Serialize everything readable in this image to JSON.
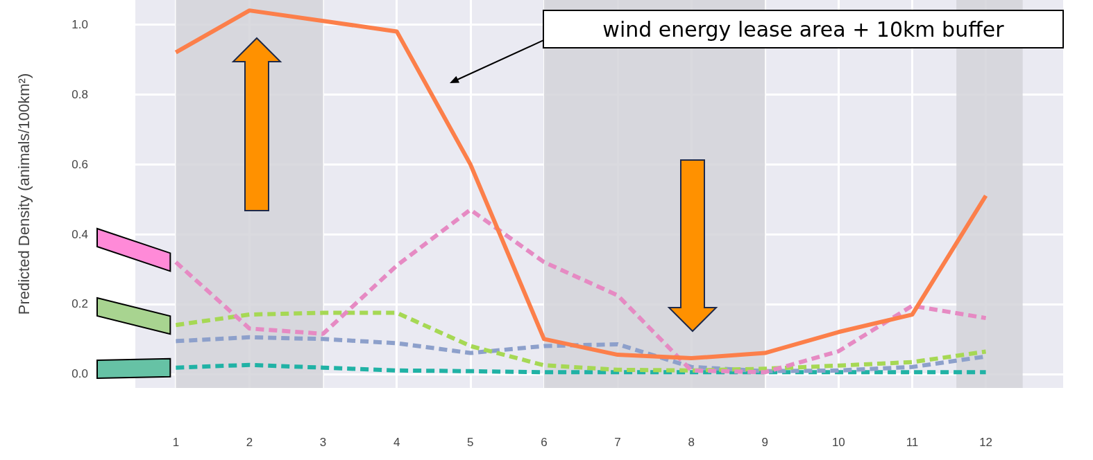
{
  "chart_data": {
    "type": "line",
    "ylabel": "Predicted Density (animals/100km²)",
    "x": [
      1,
      2,
      3,
      4,
      5,
      6,
      7,
      8,
      9,
      10,
      11,
      12
    ],
    "series": [
      {
        "color": "#fc7f4a",
        "line_style": "solid",
        "values": [
          0.92,
          1.04,
          1.01,
          0.98,
          0.6,
          0.1,
          0.055,
          0.045,
          0.06,
          0.12,
          0.17,
          0.51
        ]
      },
      {
        "color": "#e68ac3",
        "values": [
          0.32,
          0.13,
          0.115,
          0.31,
          0.47,
          0.32,
          0.225,
          0.01,
          0.005,
          0.065,
          0.195,
          0.16
        ]
      },
      {
        "color": "#a6d854",
        "values": [
          0.14,
          0.17,
          0.175,
          0.175,
          0.08,
          0.025,
          0.012,
          0.01,
          0.015,
          0.024,
          0.034,
          0.064
        ]
      },
      {
        "color": "#8da0cb",
        "values": [
          0.094,
          0.105,
          0.1,
          0.088,
          0.06,
          0.08,
          0.085,
          0.02,
          0.008,
          0.01,
          0.02,
          0.05
        ]
      },
      {
        "color": "#20b2a5",
        "values": [
          0.018,
          0.026,
          0.018,
          0.01,
          0.008,
          0.005,
          0.005,
          0.005,
          0.005,
          0.005,
          0.005,
          0.005
        ]
      }
    ],
    "line_style": "dashed",
    "marker": "none",
    "grid": true,
    "xlim": [
      0.45,
      13.05
    ],
    "xticks": [
      1,
      2,
      3,
      4,
      5,
      6,
      7,
      8,
      9,
      10,
      11,
      12
    ],
    "ylim": [
      -0.04,
      1.07
    ],
    "yticks": [
      {
        "value": 0,
        "label": "0.0"
      },
      {
        "value": 0.2,
        "label": "0.2"
      },
      {
        "value": 0.4,
        "label": "0.4"
      },
      {
        "value": 0.6,
        "label": "0.6"
      },
      {
        "value": 0.8,
        "label": "0.8"
      },
      {
        "value": 1,
        "label": "1.0"
      }
    ],
    "bands": [
      {
        "axis": "x",
        "from": 1,
        "to": 3,
        "color": "#d4d4d9"
      },
      {
        "axis": "x",
        "from": 6,
        "to": 9,
        "color": "#d4d4d9"
      },
      {
        "axis": "x",
        "from": 11.6,
        "to": 12.5,
        "color": "#d4d4d9"
      }
    ],
    "annotations": [
      "wind energy lease area + 10km buffer"
    ]
  }
}
